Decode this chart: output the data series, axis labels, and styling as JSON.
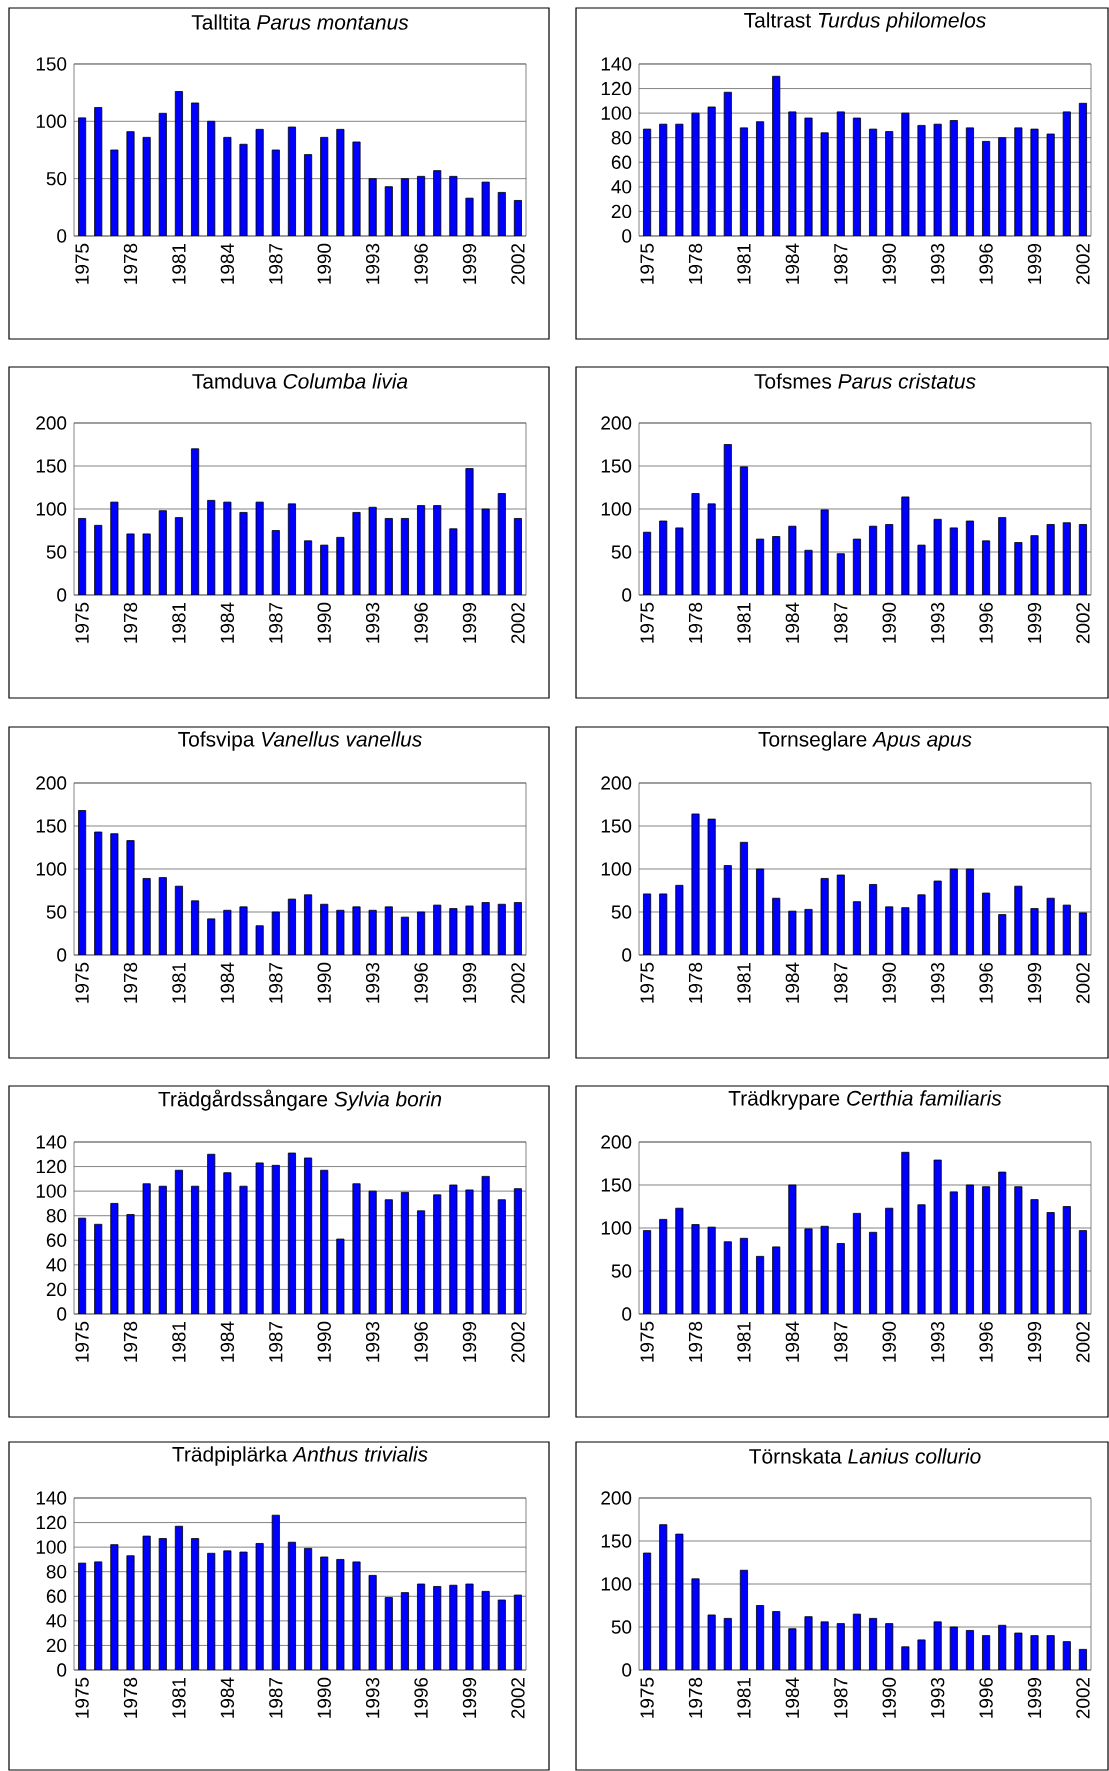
{
  "chart_data": [
    {
      "type": "bar",
      "title": "Talltita  *Parus montanus*",
      "categories": [
        "1975",
        null,
        null,
        "1978",
        null,
        null,
        "1981",
        null,
        null,
        "1984",
        null,
        null,
        "1987",
        null,
        null,
        "1990",
        null,
        null,
        "1993",
        null,
        null,
        "1996",
        null,
        null,
        "1999",
        null,
        null,
        "2002"
      ],
      "values": [
        103,
        112,
        75,
        91,
        86,
        107,
        126,
        116,
        100,
        86,
        80,
        93,
        75,
        95,
        71,
        86,
        93,
        82,
        50,
        43,
        50,
        52,
        57,
        52,
        33,
        47,
        38,
        31
      ],
      "color": "#0000ff",
      "ylim": [
        0,
        150
      ],
      "yticks": [
        0,
        50,
        100,
        150
      ],
      "grid": "y"
    },
    {
      "type": "bar",
      "title": "Taltrast  *Turdus philomelos*",
      "categories": [
        "1975",
        null,
        null,
        "1978",
        null,
        null,
        "1981",
        null,
        null,
        "1984",
        null,
        null,
        "1987",
        null,
        null,
        "1990",
        null,
        null,
        "1993",
        null,
        null,
        "1996",
        null,
        null,
        "1999",
        null,
        null,
        "2002"
      ],
      "values": [
        87,
        91,
        91,
        100,
        105,
        117,
        88,
        93,
        130,
        101,
        96,
        84,
        101,
        96,
        87,
        85,
        100,
        90,
        91,
        94,
        88,
        77,
        80,
        88,
        87,
        83,
        101,
        108
      ],
      "color": "#0000ff",
      "ylim": [
        0,
        140
      ],
      "yticks": [
        0,
        20,
        40,
        60,
        80,
        100,
        120,
        140
      ],
      "grid": "y"
    },
    {
      "type": "bar",
      "title": "Tamduva  *Columba livia*",
      "categories": [
        "1975",
        null,
        null,
        "1978",
        null,
        null,
        "1981",
        null,
        null,
        "1984",
        null,
        null,
        "1987",
        null,
        null,
        "1990",
        null,
        null,
        "1993",
        null,
        null,
        "1996",
        null,
        null,
        "1999",
        null,
        null,
        "2002"
      ],
      "values": [
        89,
        81,
        108,
        71,
        71,
        98,
        90,
        170,
        110,
        108,
        96,
        108,
        75,
        106,
        63,
        58,
        67,
        96,
        102,
        89,
        89,
        104,
        104,
        77,
        147,
        100,
        118,
        89
      ],
      "color": "#0000ff",
      "ylim": [
        0,
        200
      ],
      "yticks": [
        0,
        50,
        100,
        150,
        200
      ],
      "grid": "y"
    },
    {
      "type": "bar",
      "title": "Tofsmes  *Parus cristatus*",
      "categories": [
        "1975",
        null,
        null,
        "1978",
        null,
        null,
        "1981",
        null,
        null,
        "1984",
        null,
        null,
        "1987",
        null,
        null,
        "1990",
        null,
        null,
        "1993",
        null,
        null,
        "1996",
        null,
        null,
        "1999",
        null,
        null,
        "2002"
      ],
      "values": [
        73,
        86,
        78,
        118,
        106,
        175,
        149,
        65,
        68,
        80,
        52,
        99,
        48,
        65,
        80,
        82,
        114,
        58,
        88,
        78,
        86,
        63,
        90,
        61,
        69,
        82,
        84,
        82
      ],
      "color": "#0000ff",
      "ylim": [
        0,
        200
      ],
      "yticks": [
        0,
        50,
        100,
        150,
        200
      ],
      "grid": "y"
    },
    {
      "type": "bar",
      "title": "Tofsvipa  *Vanellus vanellus*",
      "categories": [
        "1975",
        null,
        null,
        "1978",
        null,
        null,
        "1981",
        null,
        null,
        "1984",
        null,
        null,
        "1987",
        null,
        null,
        "1990",
        null,
        null,
        "1993",
        null,
        null,
        "1996",
        null,
        null,
        "1999",
        null,
        null,
        "2002"
      ],
      "values": [
        168,
        143,
        141,
        133,
        89,
        90,
        80,
        63,
        42,
        52,
        56,
        34,
        50,
        65,
        70,
        59,
        52,
        56,
        52,
        56,
        44,
        50,
        58,
        54,
        57,
        61,
        59,
        61
      ],
      "color": "#0000ff",
      "ylim": [
        0,
        200
      ],
      "yticks": [
        0,
        50,
        100,
        150,
        200
      ],
      "grid": "y"
    },
    {
      "type": "bar",
      "title": "Tornseglare  *Apus apus*",
      "categories": [
        "1975",
        null,
        null,
        "1978",
        null,
        null,
        "1981",
        null,
        null,
        "1984",
        null,
        null,
        "1987",
        null,
        null,
        "1990",
        null,
        null,
        "1993",
        null,
        null,
        "1996",
        null,
        null,
        "1999",
        null,
        null,
        "2002"
      ],
      "values": [
        71,
        71,
        81,
        164,
        158,
        104,
        131,
        100,
        66,
        51,
        53,
        89,
        93,
        62,
        82,
        56,
        55,
        70,
        86,
        100,
        100,
        72,
        47,
        80,
        54,
        66,
        58,
        49
      ],
      "color": "#0000ff",
      "ylim": [
        0,
        200
      ],
      "yticks": [
        0,
        50,
        100,
        150,
        200
      ],
      "grid": "y"
    },
    {
      "type": "bar",
      "title": "Trädgårdssångare  *Sylvia borin*",
      "categories": [
        "1975",
        null,
        null,
        "1978",
        null,
        null,
        "1981",
        null,
        null,
        "1984",
        null,
        null,
        "1987",
        null,
        null,
        "1990",
        null,
        null,
        "1993",
        null,
        null,
        "1996",
        null,
        null,
        "1999",
        null,
        null,
        "2002"
      ],
      "values": [
        78,
        73,
        90,
        81,
        106,
        104,
        117,
        104,
        130,
        115,
        104,
        123,
        121,
        131,
        127,
        117,
        61,
        106,
        100,
        93,
        99,
        84,
        97,
        105,
        101,
        112,
        93,
        102
      ],
      "color": "#0000ff",
      "ylim": [
        0,
        140
      ],
      "yticks": [
        0,
        20,
        40,
        60,
        80,
        100,
        120,
        140
      ],
      "grid": "y"
    },
    {
      "type": "bar",
      "title": "Trädkrypare  *Certhia familiaris*",
      "categories": [
        "1975",
        null,
        null,
        "1978",
        null,
        null,
        "1981",
        null,
        null,
        "1984",
        null,
        null,
        "1987",
        null,
        null,
        "1990",
        null,
        null,
        "1993",
        null,
        null,
        "1996",
        null,
        null,
        "1999",
        null,
        null,
        "2002"
      ],
      "values": [
        97,
        110,
        123,
        104,
        101,
        84,
        88,
        67,
        78,
        150,
        99,
        102,
        82,
        117,
        95,
        123,
        188,
        127,
        179,
        142,
        150,
        148,
        165,
        148,
        133,
        118,
        125,
        97
      ],
      "color": "#0000ff",
      "ylim": [
        0,
        200
      ],
      "yticks": [
        0,
        50,
        100,
        150,
        200
      ],
      "grid": "y"
    },
    {
      "type": "bar",
      "title": "Trädpiplärka  *Anthus trivialis*",
      "categories": [
        "1975",
        null,
        null,
        "1978",
        null,
        null,
        "1981",
        null,
        null,
        "1984",
        null,
        null,
        "1987",
        null,
        null,
        "1990",
        null,
        null,
        "1993",
        null,
        null,
        "1996",
        null,
        null,
        "1999",
        null,
        null,
        "2002"
      ],
      "values": [
        87,
        88,
        102,
        93,
        109,
        107,
        117,
        107,
        95,
        97,
        96,
        103,
        126,
        104,
        99,
        92,
        90,
        88,
        77,
        59,
        63,
        70,
        68,
        69,
        70,
        64,
        57,
        61
      ],
      "color": "#0000ff",
      "ylim": [
        0,
        140
      ],
      "yticks": [
        0,
        20,
        40,
        60,
        80,
        100,
        120,
        140
      ],
      "grid": "y"
    },
    {
      "type": "bar",
      "title": "Törnskata  *Lanius collurio*",
      "categories": [
        "1975",
        null,
        null,
        "1978",
        null,
        null,
        "1981",
        null,
        null,
        "1984",
        null,
        null,
        "1987",
        null,
        null,
        "1990",
        null,
        null,
        "1993",
        null,
        null,
        "1996",
        null,
        null,
        "1999",
        null,
        null,
        "2002"
      ],
      "values": [
        136,
        169,
        158,
        106,
        64,
        60,
        116,
        75,
        68,
        48,
        62,
        56,
        54,
        65,
        60,
        54,
        27,
        35,
        56,
        50,
        46,
        40,
        52,
        43,
        40,
        40,
        33,
        24
      ],
      "color": "#0000ff",
      "ylim": [
        0,
        200
      ],
      "yticks": [
        0,
        50,
        100,
        150,
        200
      ],
      "grid": "y"
    }
  ]
}
